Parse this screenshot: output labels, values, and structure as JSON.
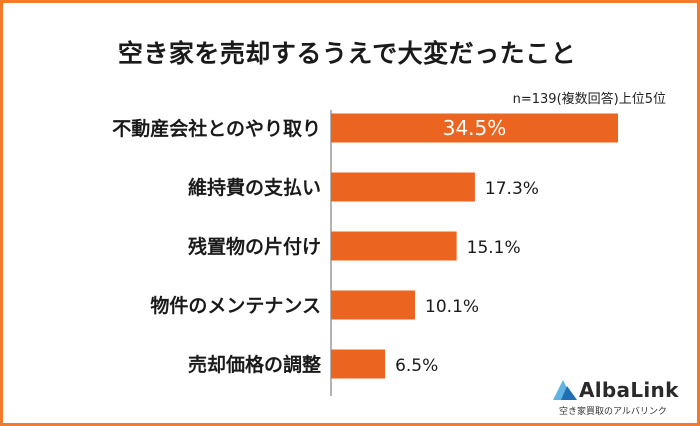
{
  "chart_data": {
    "type": "bar",
    "orientation": "horizontal",
    "title": "空き家を売却するうえで大変だったこと",
    "note": "n=139(複数回答)上位5位",
    "categories": [
      "不動産会社とのやり取り",
      "維持費の支払い",
      "残置物の片付け",
      "物件のメンテナンス",
      "売却価格の調整"
    ],
    "values": [
      34.5,
      17.3,
      15.1,
      10.1,
      6.5
    ],
    "value_labels": [
      "34.5%",
      "17.3%",
      "15.1%",
      "10.1%",
      "6.5%"
    ],
    "xlim": [
      0,
      37.5
    ],
    "grid": false,
    "bar_color": "#eb6420",
    "first_label_color": "#ffffff"
  },
  "logo": {
    "name": "AlbaLink",
    "tagline": "空き家買取のアルバリンク",
    "mark_color_light": "#5fb4e6",
    "mark_color_dark": "#1f6fb2"
  },
  "frame_color": "#f07a2e"
}
